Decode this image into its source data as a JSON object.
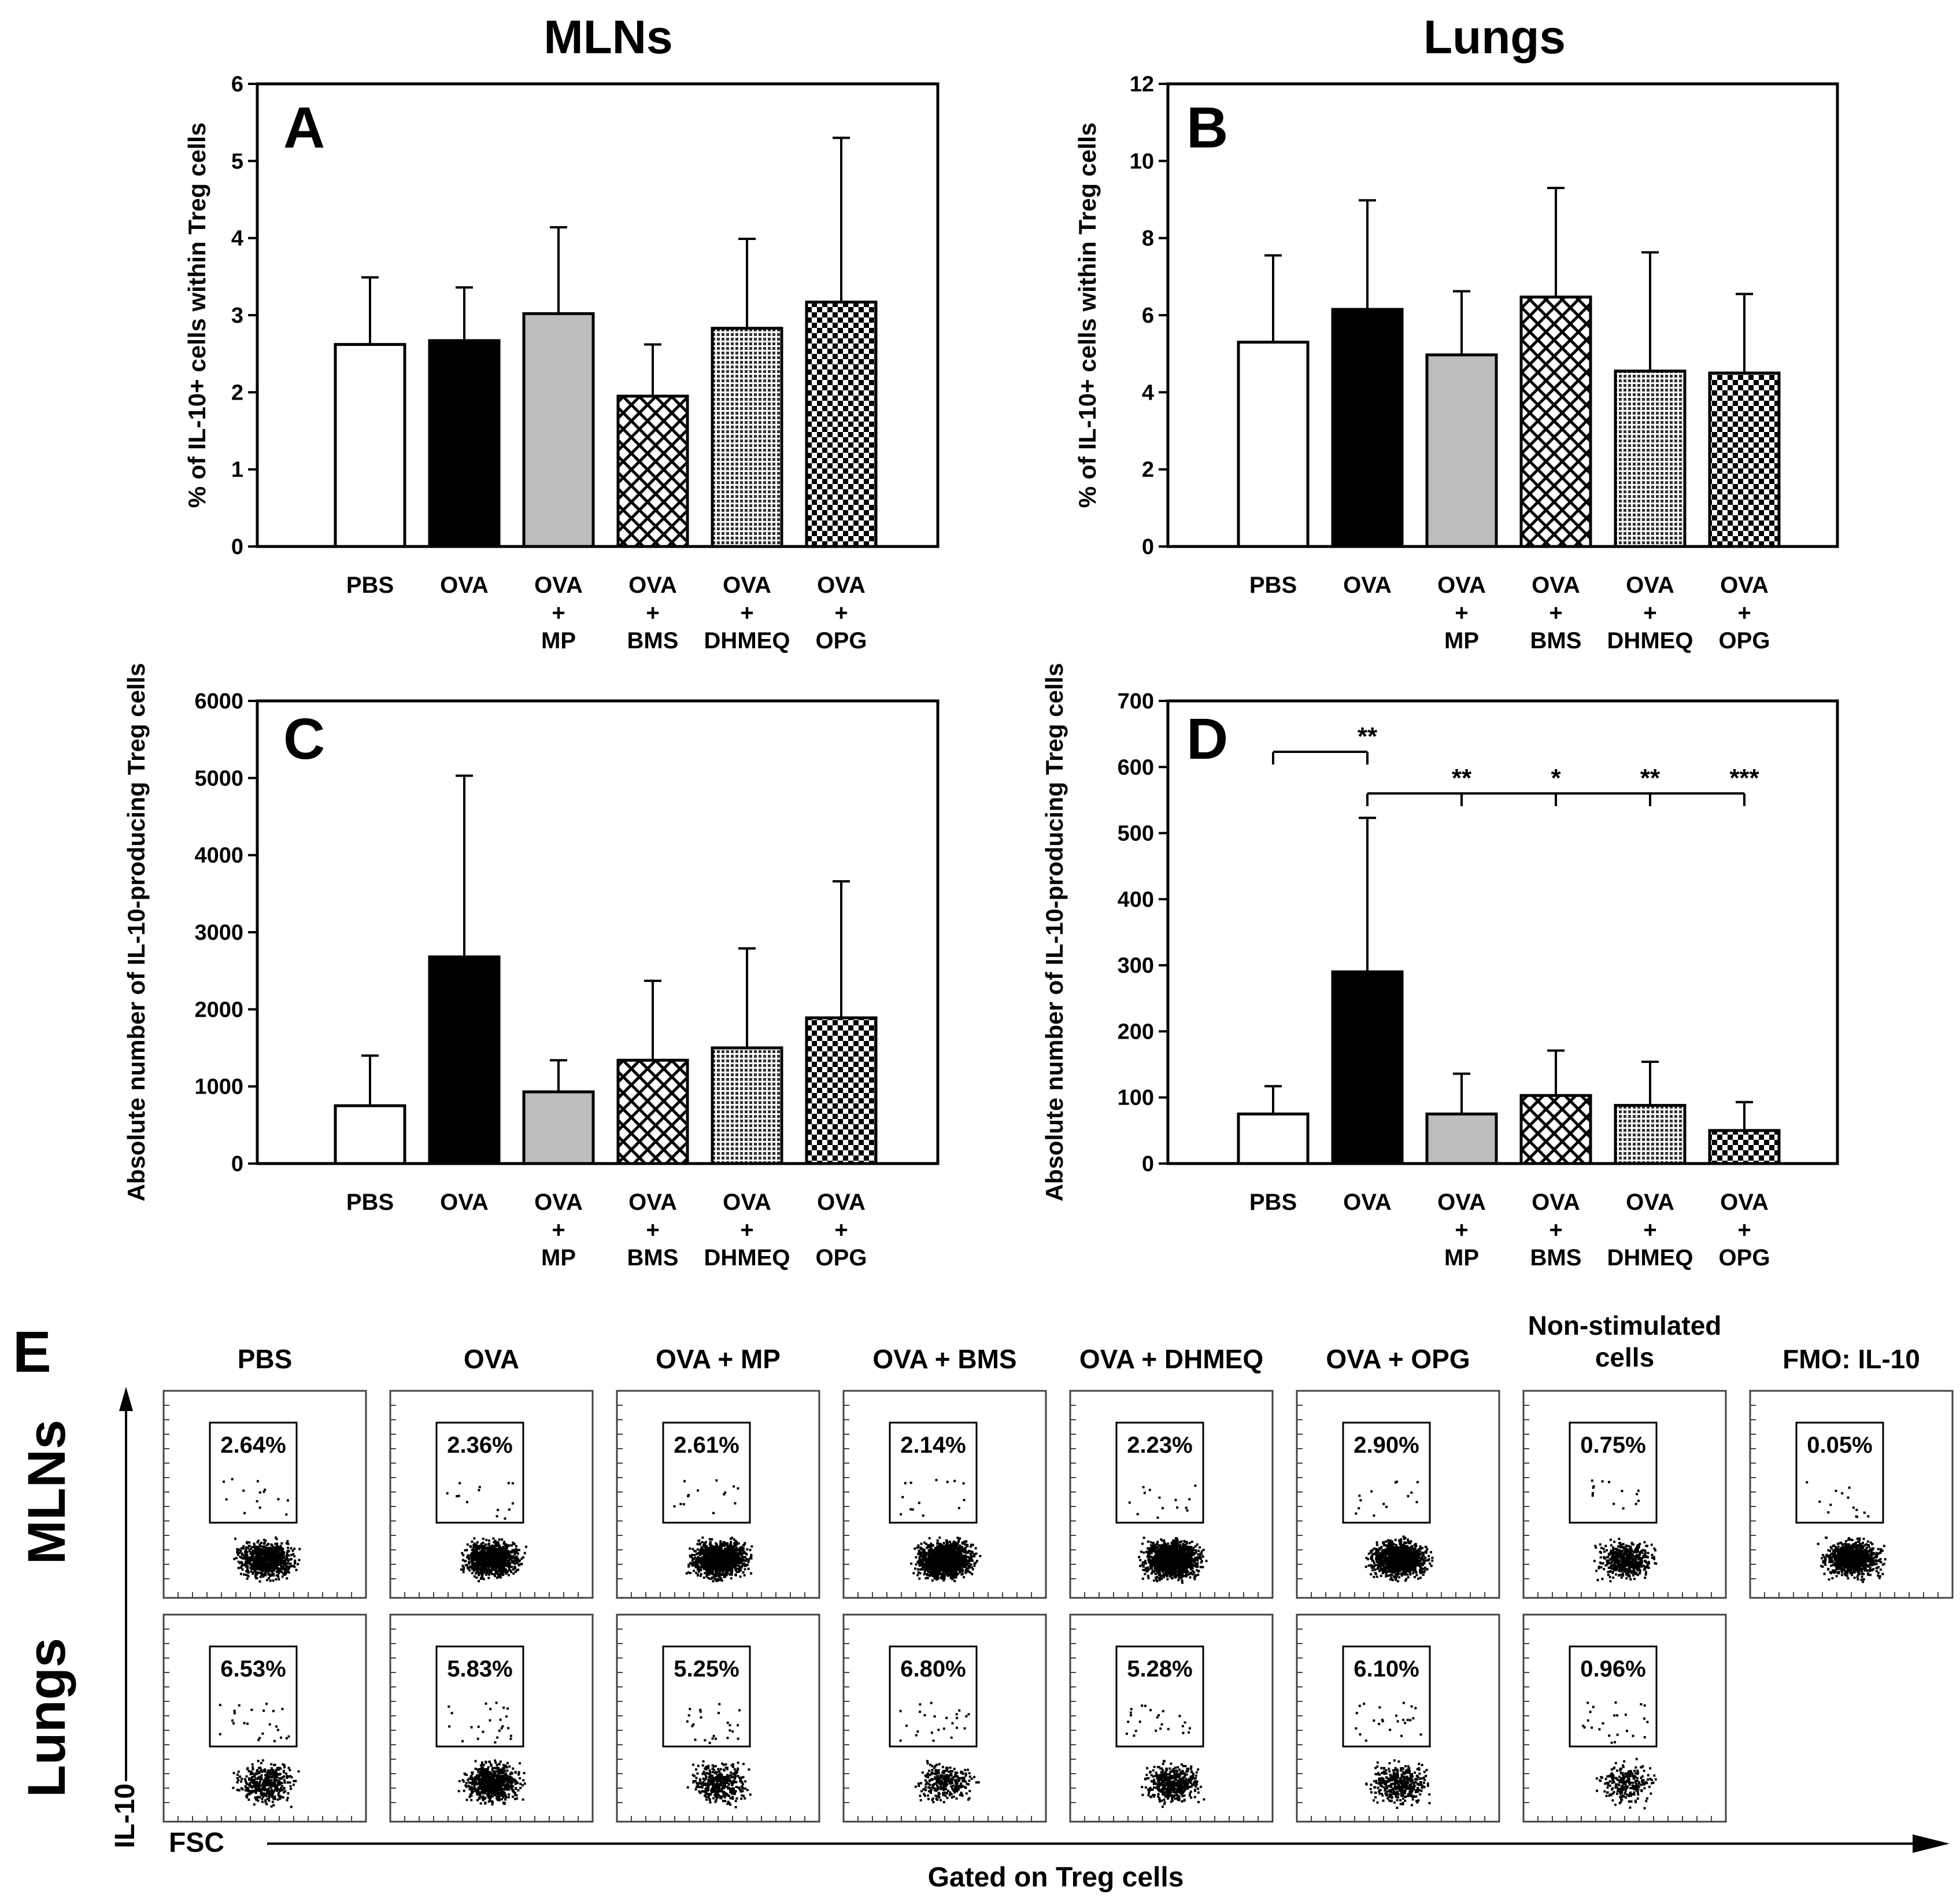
{
  "titles": {
    "mlns": "MLNs",
    "lungs": "Lungs"
  },
  "categories": [
    [
      "PBS"
    ],
    [
      "OVA"
    ],
    [
      "OVA",
      "+",
      "MP"
    ],
    [
      "OVA",
      "+",
      "BMS"
    ],
    [
      "OVA",
      "+",
      "DHMEQ"
    ],
    [
      "OVA",
      "+",
      "OPG"
    ]
  ],
  "colors": {
    "pbs": "#ffffff",
    "ova": "#000000",
    "mp": "#bdbdbd",
    "bms": "crosshatch",
    "dhmeq": "fine-dots",
    "opg": "checker"
  },
  "chart_data": [
    {
      "panel": "A",
      "type": "bar",
      "title": "MLNs",
      "ylabel": "% of IL-10+ cells within Treg cells",
      "ylim": [
        0,
        6
      ],
      "yticks": [
        0,
        1,
        2,
        3,
        4,
        5,
        6
      ],
      "values": [
        2.62,
        2.67,
        3.02,
        1.95,
        2.83,
        3.17
      ],
      "errors": [
        0.87,
        0.69,
        1.12,
        0.67,
        1.16,
        2.13
      ],
      "significance": []
    },
    {
      "panel": "B",
      "type": "bar",
      "title": "Lungs",
      "ylabel": "% of IL-10+ cells within Treg cells",
      "ylim": [
        0,
        12
      ],
      "yticks": [
        0,
        2,
        4,
        6,
        8,
        10,
        12
      ],
      "values": [
        5.3,
        6.15,
        4.97,
        6.47,
        4.55,
        4.5
      ],
      "errors": [
        2.25,
        2.83,
        1.65,
        2.83,
        3.08,
        2.05
      ],
      "significance": []
    },
    {
      "panel": "C",
      "type": "bar",
      "ylabel": "Absolute number of IL-10-producing Treg cells",
      "ylim": [
        0,
        6000
      ],
      "yticks": [
        0,
        1000,
        2000,
        3000,
        4000,
        5000,
        6000
      ],
      "values": [
        750,
        2680,
        930,
        1340,
        1500,
        1890
      ],
      "errors": [
        650,
        2350,
        410,
        1030,
        1290,
        1770
      ],
      "significance": []
    },
    {
      "panel": "D",
      "type": "bar",
      "ylabel": "Absolute number of IL-10-producing Treg cells",
      "ylim": [
        0,
        700
      ],
      "yticks": [
        0,
        100,
        200,
        300,
        400,
        500,
        600,
        700
      ],
      "values": [
        75,
        290,
        75,
        103,
        88,
        50
      ],
      "errors": [
        42,
        233,
        61,
        68,
        66,
        43
      ],
      "significance": [
        {
          "from": 0,
          "to": 1,
          "level": 623,
          "label": "**"
        },
        {
          "from": 1,
          "to": 2,
          "level": 560,
          "label": "**"
        },
        {
          "from": 1,
          "to": 3,
          "level": 560,
          "label": "*"
        },
        {
          "from": 1,
          "to": 4,
          "level": 560,
          "label": "**"
        },
        {
          "from": 1,
          "to": 5,
          "level": 560,
          "label": "***"
        }
      ]
    }
  ],
  "panel_e": {
    "label": "E",
    "columns": [
      [
        "PBS"
      ],
      [
        "OVA"
      ],
      [
        "OVA + MP"
      ],
      [
        "OVA + BMS"
      ],
      [
        "OVA + DHMEQ"
      ],
      [
        "OVA + OPG"
      ],
      [
        "Non-stimulated",
        "cells"
      ],
      [
        "FMO: IL-10"
      ]
    ],
    "rows": [
      {
        "name": "MLNs",
        "percentages": [
          "2.64%",
          "2.36%",
          "2.61%",
          "2.14%",
          "2.23%",
          "2.90%",
          "0.75%",
          "0.05%"
        ],
        "density": [
          900,
          1000,
          1200,
          1500,
          1500,
          1200,
          500,
          900
        ]
      },
      {
        "name": "Lungs",
        "percentages": [
          "6.53%",
          "5.83%",
          "5.25%",
          "6.80%",
          "5.28%",
          "6.10%",
          "0.96%"
        ],
        "density": [
          420,
          700,
          380,
          300,
          480,
          420,
          240
        ]
      }
    ],
    "y_axis": "IL-10",
    "x_axis": "FSC",
    "footer": "Gated on Treg cells"
  }
}
